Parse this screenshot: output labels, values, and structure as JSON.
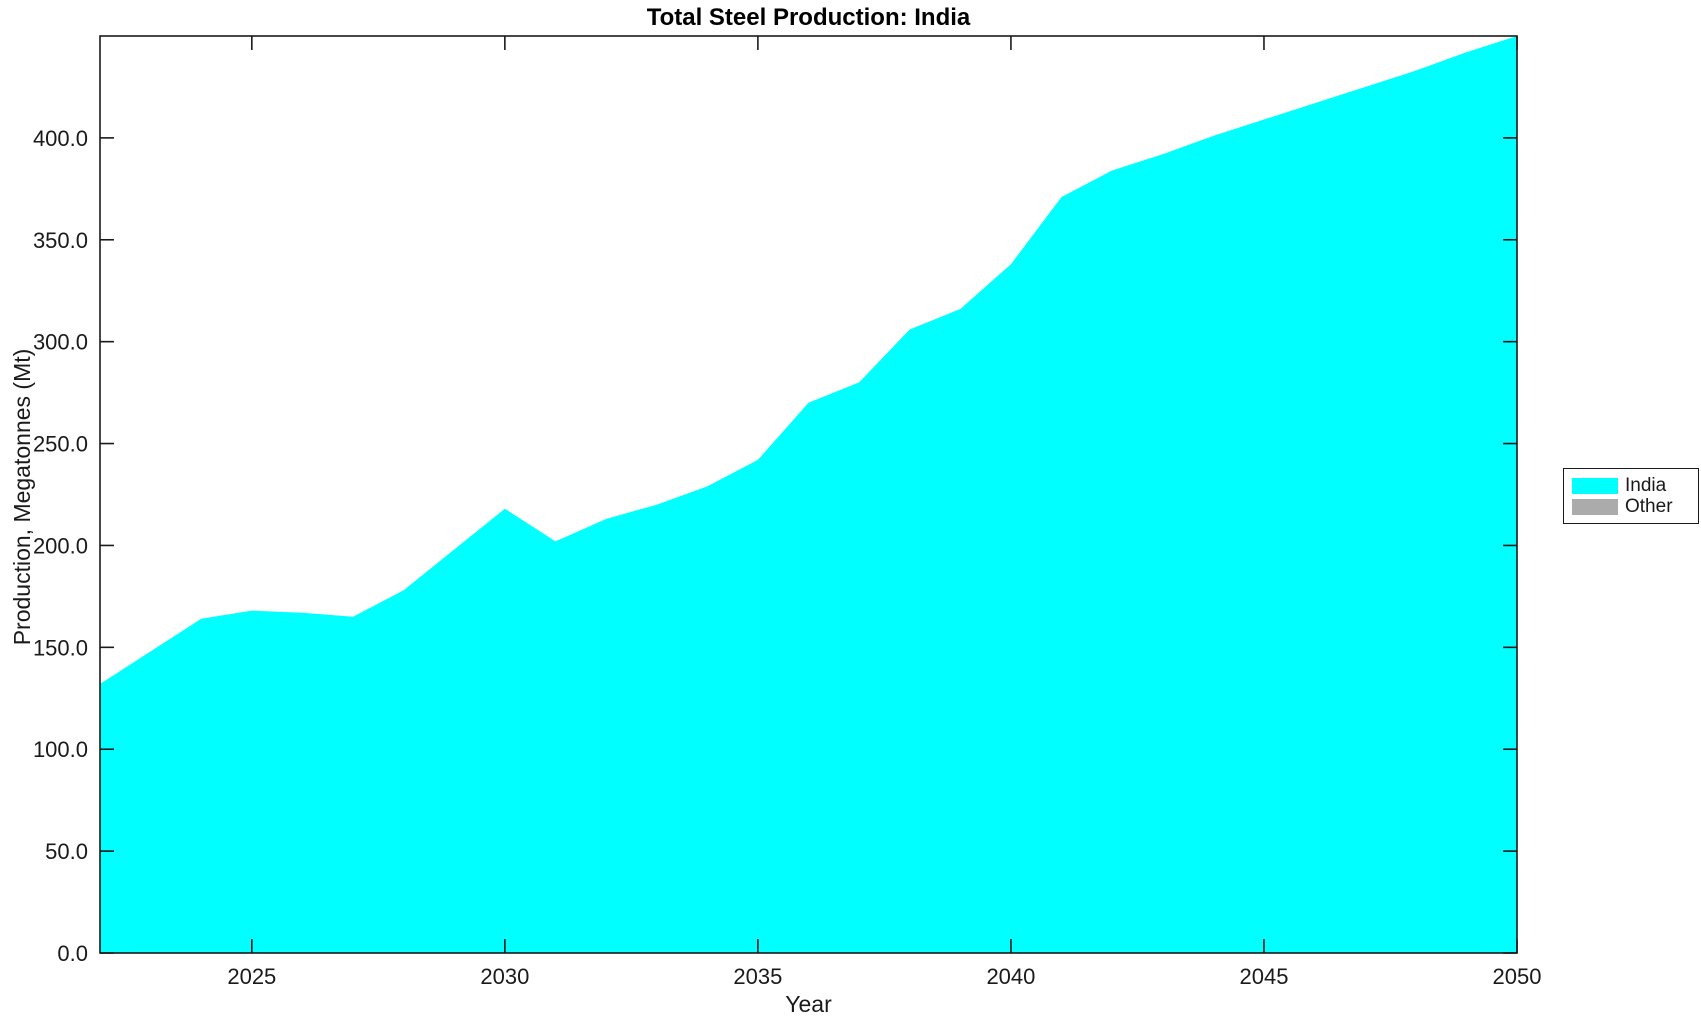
{
  "chart_data": {
    "type": "area",
    "title": "Total Steel Production: India",
    "xlabel": "Year",
    "ylabel": "Production, Megatonnes (Mt)",
    "xlim": [
      2022,
      2050
    ],
    "ylim": [
      0,
      450
    ],
    "grid": false,
    "box": true,
    "tick_direction": "in",
    "xticks": {
      "values": [
        2025,
        2030,
        2035,
        2040,
        2045,
        2050
      ],
      "labels": [
        "2025",
        "2030",
        "2035",
        "2040",
        "2045",
        "2050"
      ]
    },
    "yticks": {
      "values": [
        0,
        50,
        100,
        150,
        200,
        250,
        300,
        350,
        400
      ],
      "labels": [
        "0.0",
        "50.0",
        "100.0",
        "150.0",
        "200.0",
        "250.0",
        "300.0",
        "350.0",
        "400.0"
      ]
    },
    "series": [
      {
        "name": "India",
        "color": "#00FFFF",
        "x": [
          2022,
          2023,
          2024,
          2025,
          2026,
          2027,
          2028,
          2029,
          2030,
          2031,
          2032,
          2033,
          2034,
          2035,
          2036,
          2037,
          2038,
          2039,
          2040,
          2041,
          2042,
          2043,
          2044,
          2045,
          2046,
          2047,
          2048,
          2049,
          2050
        ],
        "values": [
          132,
          148,
          164,
          168,
          167,
          165,
          178,
          198,
          218,
          202,
          213,
          220,
          229,
          242,
          270,
          280,
          306,
          316,
          338,
          371,
          384,
          392,
          401,
          409,
          417,
          425,
          433,
          442,
          450
        ]
      }
    ],
    "legend": {
      "position": "right-outside",
      "items": [
        {
          "label": "India",
          "color": "#00FFFF"
        },
        {
          "label": "Other",
          "color": "#ABABAB"
        }
      ]
    }
  }
}
